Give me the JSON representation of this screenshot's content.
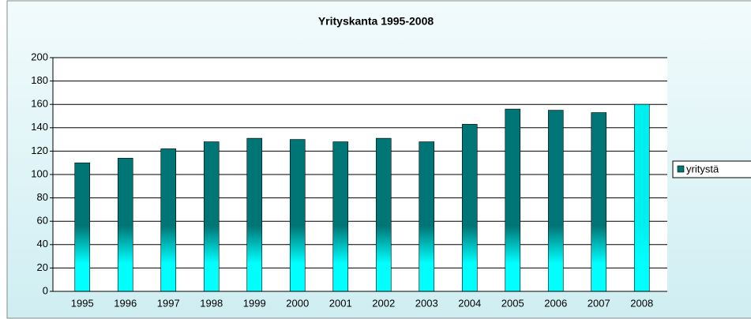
{
  "chart_data": {
    "type": "bar",
    "title": "Yrityskanta 1995-2008",
    "categories": [
      "1995",
      "1996",
      "1997",
      "1998",
      "1999",
      "2000",
      "2001",
      "2002",
      "2003",
      "2004",
      "2005",
      "2006",
      "2007",
      "2008"
    ],
    "series": [
      {
        "name": "yritystä",
        "values": [
          110,
          114,
          122,
          128,
          131,
          130,
          128,
          131,
          128,
          143,
          156,
          155,
          153,
          160
        ],
        "colors": [
          "#007575",
          "#007575",
          "#007575",
          "#007575",
          "#007575",
          "#007575",
          "#007575",
          "#007575",
          "#007575",
          "#007575",
          "#007575",
          "#007575",
          "#007575",
          "#00f0f0"
        ]
      }
    ],
    "ylim": [
      0,
      200
    ],
    "yticks": [
      0,
      20,
      40,
      60,
      80,
      100,
      120,
      140,
      160,
      180,
      200
    ],
    "grid": true,
    "legend": "right"
  }
}
